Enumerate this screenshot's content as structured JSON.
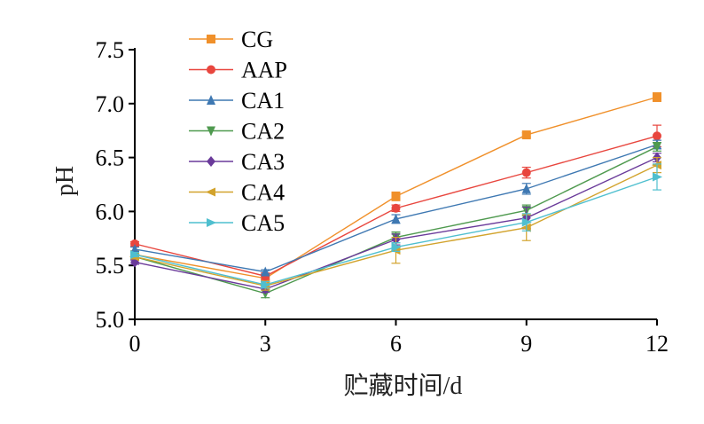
{
  "chart_data": {
    "type": "line",
    "title": "",
    "xlabel": "贮藏时间/d",
    "ylabel": "pH",
    "x": [
      0,
      3,
      6,
      9,
      12
    ],
    "xticks": [
      "0",
      "3",
      "6",
      "9",
      "12"
    ],
    "yticks": [
      "5.0",
      "5.5",
      "6.0",
      "6.5",
      "7.0",
      "7.5"
    ],
    "xlim": [
      0,
      12
    ],
    "ylim": [
      5.0,
      7.5
    ],
    "grid": false,
    "legend_position": "top-left",
    "series": [
      {
        "name": "CG",
        "color": "#f0902a",
        "marker": "square",
        "values": [
          5.6,
          5.38,
          6.14,
          6.71,
          7.06
        ],
        "errors": [
          0.02,
          0.03,
          0.04,
          0.02,
          0.04
        ]
      },
      {
        "name": "AAP",
        "color": "#e8463e",
        "marker": "circle",
        "values": [
          5.7,
          5.4,
          6.03,
          6.36,
          6.7
        ],
        "errors": [
          0.02,
          0.03,
          0.03,
          0.05,
          0.1
        ]
      },
      {
        "name": "CA1",
        "color": "#3e78b2",
        "marker": "triangle-up",
        "values": [
          5.65,
          5.44,
          5.93,
          6.21,
          6.62
        ],
        "errors": [
          0.02,
          0.02,
          0.04,
          0.05,
          0.04
        ]
      },
      {
        "name": "CA2",
        "color": "#4f9a4f",
        "marker": "triangle-down",
        "values": [
          5.58,
          5.24,
          5.76,
          6.01,
          6.6
        ],
        "errors": [
          0.02,
          0.04,
          0.05,
          0.05,
          0.04
        ]
      },
      {
        "name": "CA3",
        "color": "#6a3a9a",
        "marker": "diamond",
        "values": [
          5.53,
          5.28,
          5.74,
          5.94,
          6.5
        ],
        "errors": [
          0.02,
          0.03,
          0.05,
          0.1,
          0.04
        ]
      },
      {
        "name": "CA4",
        "color": "#d2a32c",
        "marker": "triangle-left",
        "values": [
          5.58,
          5.31,
          5.64,
          5.85,
          6.43
        ],
        "errors": [
          0.02,
          0.04,
          0.12,
          0.12,
          0.07
        ]
      },
      {
        "name": "CA5",
        "color": "#4fbfcf",
        "marker": "triangle-right",
        "values": [
          5.6,
          5.32,
          5.67,
          5.9,
          6.32
        ],
        "errors": [
          0.02,
          0.03,
          0.04,
          0.08,
          0.12
        ]
      }
    ]
  }
}
